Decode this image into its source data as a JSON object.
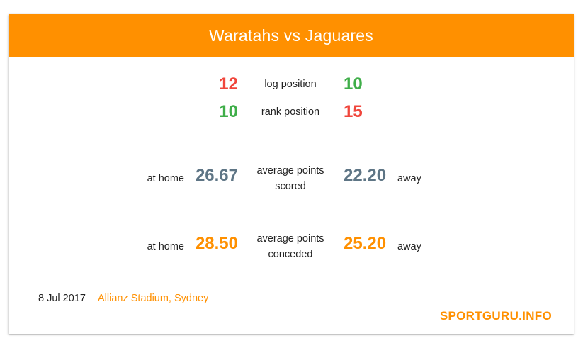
{
  "header": {
    "title": "Waratahs vs Jaguares"
  },
  "colors": {
    "accent": "#ff9000",
    "red": "#f0463c",
    "green": "#3fae49",
    "slate": "#5e7585",
    "orange": "#ff9000"
  },
  "log": {
    "home": "12",
    "label": "log position",
    "away": "10"
  },
  "rank": {
    "home": "10",
    "label": "rank position",
    "away": "15"
  },
  "scored": {
    "home_label": "at home",
    "home": "26.67",
    "label_line1": "average points",
    "label_line2": "scored",
    "away": "22.20",
    "away_label": "away"
  },
  "conceded": {
    "home_label": "at home",
    "home": "28.50",
    "label_line1": "average points",
    "label_line2": "conceded",
    "away": "25.20",
    "away_label": "away"
  },
  "footer": {
    "date": "8 Jul 2017",
    "venue": "Allianz Stadium, Sydney",
    "brand": "SPORTGURU.INFO"
  }
}
